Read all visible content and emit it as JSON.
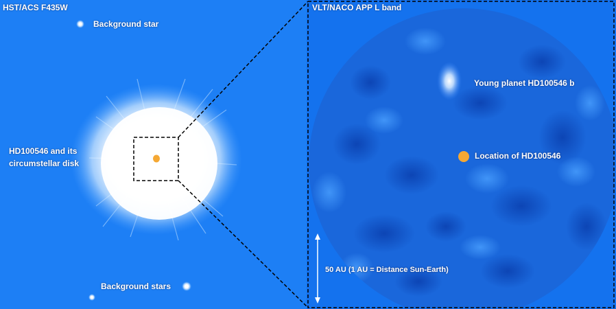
{
  "left_panel": {
    "title": "HST/ACS F435W",
    "background_star_label": "Background star",
    "background_stars_label": "Background stars",
    "target_label_line1": "HD100546 and its",
    "target_label_line2": "circumstellar disk",
    "background_color": "#1d7ff5"
  },
  "right_panel": {
    "title": "VLT/NACO APP L band",
    "planet_label": "Young planet HD100546 b",
    "star_location_label": "Location of HD100546",
    "scale_label": "50 AU (1 AU = Distance Sun-Earth)",
    "background_color": "#1472ee"
  },
  "colors": {
    "star_marker": "#f5a834",
    "frame_line": "#000000",
    "text": "#ffffff"
  }
}
